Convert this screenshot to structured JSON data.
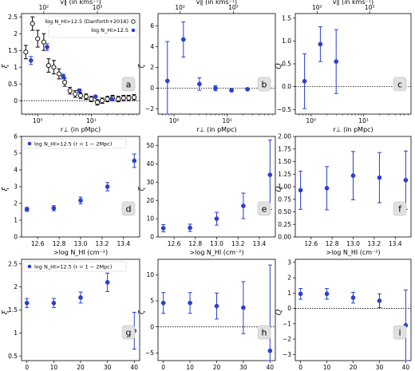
{
  "colors": {
    "blue": "#2a3fd0",
    "black": "#000000",
    "label_box": "#e0e0e0"
  },
  "chart_data": [
    {
      "id": "a",
      "type": "scatter",
      "panel_label": "a",
      "xscale": "log",
      "xlim": [
        0.5,
        80
      ],
      "ylim": [
        -0.4,
        2.6
      ],
      "yticks": [
        0.0,
        0.5,
        1.0,
        1.5,
        2.0,
        2.5
      ],
      "xticks": [
        {
          "v": 1,
          "t": "10⁰"
        },
        {
          "v": 10,
          "t": "10¹"
        }
      ],
      "ylabel": "ξ",
      "xlabel": "r⊥ (in pMpc)",
      "top_axis": {
        "label": "v∥ (in kms⁻¹)",
        "ticks": [
          {
            "v": 1.3,
            "t": "10²"
          },
          {
            "v": 13,
            "t": "10³"
          }
        ]
      },
      "zero_line": true,
      "legend": [
        "log N_HI>12.5 (Danforth+2016)",
        "log N_HI>12.5"
      ],
      "series": [
        {
          "name": "log N_HI>12.5 (Danforth+2016)",
          "marker": "open",
          "color": "#000000",
          "x": [
            0.6,
            0.8,
            1.0,
            1.3,
            1.6,
            2.0,
            2.5,
            3.2,
            4.0,
            5.0,
            6.3,
            8.0,
            10,
            13,
            16,
            20,
            25,
            32,
            40,
            50,
            63
          ],
          "y": [
            1.45,
            2.3,
            1.85,
            1.75,
            1.05,
            1.0,
            0.8,
            0.55,
            0.3,
            0.2,
            0.15,
            0.12,
            0.05,
            -0.05,
            0.0,
            0.05,
            0.08,
            0.05,
            0.08,
            0.08,
            0.1
          ],
          "err": [
            0.2,
            0.2,
            0.25,
            0.25,
            0.2,
            0.2,
            0.15,
            0.12,
            0.1,
            0.1,
            0.08,
            0.08,
            0.08,
            0.08,
            0.08,
            0.08,
            0.08,
            0.08,
            0.08,
            0.08,
            0.08
          ]
        },
        {
          "name": "log N_HI>12.5",
          "marker": "filled",
          "color": "#2a3fd0",
          "x": [
            0.75,
            1.5,
            3.0,
            6.0,
            12.0,
            24.0
          ],
          "y": [
            1.2,
            1.6,
            0.72,
            0.3,
            0.12,
            0.05
          ],
          "err": [
            0.12,
            0.1,
            0.07,
            0.05,
            0.03,
            0.02
          ]
        }
      ]
    },
    {
      "id": "b",
      "type": "scatter",
      "panel_label": "b",
      "xscale": "log",
      "xlim": [
        0.5,
        80
      ],
      "ylim": [
        -2.5,
        7.2
      ],
      "yticks": [
        -2,
        0,
        2,
        4,
        6
      ],
      "ytick_text": [
        "−2",
        "0",
        "2",
        "4",
        "6"
      ],
      "xticks": [
        {
          "v": 1,
          "t": "10⁰"
        },
        {
          "v": 10,
          "t": "10¹"
        }
      ],
      "ylabel": "ζ",
      "xlabel": "r⊥ (in pMpc)",
      "top_axis": {
        "label": "v∥ (in kms⁻¹)",
        "ticks": [
          {
            "v": 1.3,
            "t": "10²"
          },
          {
            "v": 13,
            "t": "10³"
          }
        ]
      },
      "zero_line": true,
      "series": [
        {
          "name": "",
          "marker": "filled",
          "color": "#2a3fd0",
          "x": [
            0.75,
            1.5,
            3.0,
            6.0,
            12.0,
            24.0
          ],
          "y": [
            0.7,
            4.7,
            0.4,
            0.0,
            -0.2,
            -0.1
          ],
          "err": [
            3.8,
            1.7,
            0.6,
            0.25,
            0.15,
            0.1
          ]
        }
      ]
    },
    {
      "id": "c",
      "type": "scatter",
      "panel_label": "c",
      "xscale": "log",
      "xlim": [
        0.5,
        80
      ],
      "ylim": [
        -0.6,
        1.6
      ],
      "yticks": [
        -0.5,
        0.0,
        0.5,
        1.0,
        1.5
      ],
      "ytick_text": [
        "−0.5",
        "0.0",
        "0.5",
        "1.0",
        "1.5"
      ],
      "xticks": [
        {
          "v": 1,
          "t": "10⁰"
        },
        {
          "v": 10,
          "t": "10¹"
        }
      ],
      "ylabel": "Q",
      "xlabel": "r⊥ (in pMpc)",
      "top_axis": {
        "label": "v∥ (in kms⁻¹)",
        "ticks": [
          {
            "v": 1.3,
            "t": "10²"
          },
          {
            "v": 13,
            "t": "10³"
          }
        ]
      },
      "zero_line": true,
      "series": [
        {
          "name": "",
          "marker": "filled",
          "color": "#2a3fd0",
          "x": [
            0.75,
            1.5,
            3.0
          ],
          "y": [
            0.12,
            0.93,
            0.55
          ],
          "err": [
            0.6,
            0.38,
            0.7
          ]
        }
      ]
    },
    {
      "id": "d",
      "type": "scatter",
      "panel_label": "d",
      "xscale": "linear",
      "xlim": [
        12.45,
        13.55
      ],
      "ylim": [
        0,
        6
      ],
      "yticks": [
        0,
        1,
        2,
        3,
        4,
        5,
        6
      ],
      "xticks": [
        {
          "v": 12.6,
          "t": "12.6"
        },
        {
          "v": 12.8,
          "t": "12.8"
        },
        {
          "v": 13.0,
          "t": "13.0"
        },
        {
          "v": 13.2,
          "t": "13.2"
        },
        {
          "v": 13.4,
          "t": "13.4"
        }
      ],
      "ylabel": "ξ",
      "xlabel": ">log N_HI (cm⁻²)",
      "zero_line": false,
      "legend": [
        "log N_HI>12.5 (r = 1 − 2Mpc)"
      ],
      "series": [
        {
          "name": "log N_HI>12.5 (r = 1 − 2Mpc)",
          "marker": "filled",
          "color": "#2a3fd0",
          "x": [
            12.5,
            12.75,
            13.0,
            13.25,
            13.5
          ],
          "y": [
            1.65,
            1.72,
            2.18,
            3.0,
            4.55
          ],
          "err": [
            0.12,
            0.15,
            0.2,
            0.25,
            0.4
          ]
        }
      ]
    },
    {
      "id": "e",
      "type": "scatter",
      "panel_label": "e",
      "xscale": "linear",
      "xlim": [
        12.45,
        13.55
      ],
      "ylim": [
        0,
        55
      ],
      "yticks": [
        0,
        10,
        20,
        30,
        40,
        50
      ],
      "xticks": [
        {
          "v": 12.6,
          "t": "12.6"
        },
        {
          "v": 12.8,
          "t": "12.8"
        },
        {
          "v": 13.0,
          "t": "13.0"
        },
        {
          "v": 13.2,
          "t": "13.2"
        },
        {
          "v": 13.4,
          "t": "13.4"
        }
      ],
      "ylabel": "ζ",
      "xlabel": ">log N_HI (cm⁻²)",
      "zero_line": false,
      "series": [
        {
          "name": "",
          "marker": "filled",
          "color": "#2a3fd0",
          "x": [
            12.5,
            12.75,
            13.0,
            13.25,
            13.5
          ],
          "y": [
            4.8,
            5.0,
            10.0,
            17.0,
            34.0
          ],
          "err": [
            2.0,
            2.0,
            3.5,
            7.0,
            19.0
          ]
        }
      ]
    },
    {
      "id": "f",
      "type": "scatter",
      "panel_label": "f",
      "xscale": "linear",
      "xlim": [
        12.45,
        13.55
      ],
      "ylim": [
        0,
        2
      ],
      "yticks": [
        0.0,
        0.25,
        0.5,
        0.75,
        1.0,
        1.25,
        1.5,
        1.75,
        2.0
      ],
      "ytick_text": [
        "0.00",
        "0.25",
        "0.50",
        "0.75",
        "1.00",
        "1.25",
        "1.50",
        "1.75",
        "2.00"
      ],
      "xticks": [
        {
          "v": 12.6,
          "t": "12.6"
        },
        {
          "v": 12.8,
          "t": "12.8"
        },
        {
          "v": 13.0,
          "t": "13.0"
        },
        {
          "v": 13.2,
          "t": "13.2"
        },
        {
          "v": 13.4,
          "t": "13.4"
        }
      ],
      "ylabel": "Q",
      "xlabel": ">log N_HI (cm⁻²)",
      "zero_line": false,
      "series": [
        {
          "name": "",
          "marker": "filled",
          "color": "#2a3fd0",
          "x": [
            12.5,
            12.75,
            13.0,
            13.25,
            13.5
          ],
          "y": [
            0.93,
            0.97,
            1.22,
            1.18,
            1.13
          ],
          "err": [
            0.38,
            0.43,
            0.48,
            0.5,
            0.58
          ]
        }
      ]
    },
    {
      "id": "g",
      "type": "scatter",
      "panel_label": "g",
      "xscale": "linear",
      "xlim": [
        -2,
        42
      ],
      "ylim": [
        0.4,
        2.6
      ],
      "yticks": [
        0.5,
        1.0,
        1.5,
        2.0,
        2.5
      ],
      "xticks": [
        {
          "v": 0,
          "t": "0"
        },
        {
          "v": 10,
          "t": "10"
        },
        {
          "v": 20,
          "t": "20"
        },
        {
          "v": 30,
          "t": "30"
        },
        {
          "v": 40,
          "t": "40"
        }
      ],
      "ylabel": "ξ",
      "xlabel": ">b (in kms⁻¹)",
      "zero_line": false,
      "legend": [
        "log N_HI>12.5 (r = 1 − 2Mpc)"
      ],
      "series": [
        {
          "name": "log N_HI>12.5 (r = 1 − 2Mpc)",
          "marker": "filled",
          "color": "#2a3fd0",
          "x": [
            0,
            10,
            20,
            30,
            40
          ],
          "y": [
            1.65,
            1.65,
            1.77,
            2.1,
            1.05
          ],
          "err": [
            0.1,
            0.1,
            0.12,
            0.2,
            0.4
          ]
        }
      ]
    },
    {
      "id": "h",
      "type": "scatter",
      "panel_label": "h",
      "xscale": "linear",
      "xlim": [
        -2,
        42
      ],
      "ylim": [
        -6.5,
        13
      ],
      "yticks": [
        -5,
        0,
        5,
        10
      ],
      "ytick_text": [
        "−5",
        "0",
        "5",
        "10"
      ],
      "xticks": [
        {
          "v": 0,
          "t": "0"
        },
        {
          "v": 10,
          "t": "10"
        },
        {
          "v": 20,
          "t": "20"
        },
        {
          "v": 30,
          "t": "30"
        },
        {
          "v": 40,
          "t": "40"
        }
      ],
      "ylabel": "ζ",
      "xlabel": ">b (in kms⁻¹)",
      "zero_line": true,
      "series": [
        {
          "name": "",
          "marker": "filled",
          "color": "#2a3fd0",
          "x": [
            0,
            10,
            20,
            30,
            40
          ],
          "y": [
            4.6,
            4.6,
            4.0,
            3.7,
            -4.6
          ],
          "err": [
            2.0,
            2.0,
            2.5,
            5.0,
            16.5
          ]
        }
      ]
    },
    {
      "id": "i",
      "type": "scatter",
      "panel_label": "i",
      "xscale": "linear",
      "xlim": [
        -2,
        42
      ],
      "ylim": [
        -3.4,
        3.2
      ],
      "yticks": [
        -3,
        -2,
        -1,
        0,
        1,
        2,
        3
      ],
      "ytick_text": [
        "−3",
        "−2",
        "−1",
        "0",
        "1",
        "2",
        "3"
      ],
      "xticks": [
        {
          "v": 0,
          "t": "0"
        },
        {
          "v": 10,
          "t": "10"
        },
        {
          "v": 20,
          "t": "20"
        },
        {
          "v": 30,
          "t": "30"
        },
        {
          "v": 40,
          "t": "40"
        }
      ],
      "ylabel": "Q",
      "xlabel": ">b (in kms⁻¹)",
      "zero_line": true,
      "series": [
        {
          "name": "",
          "marker": "filled",
          "color": "#2a3fd0",
          "x": [
            0,
            10,
            20,
            30,
            40
          ],
          "y": [
            0.95,
            0.95,
            0.7,
            0.5,
            -1.1
          ],
          "err": [
            0.35,
            0.35,
            0.35,
            0.45,
            2.3
          ]
        }
      ]
    }
  ]
}
